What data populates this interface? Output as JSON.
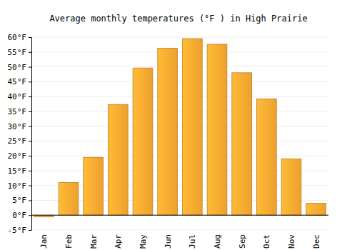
{
  "chart_data": {
    "type": "bar",
    "title": "Average monthly temperatures (°F ) in High Prairie",
    "categories": [
      "Jan",
      "Feb",
      "Mar",
      "Apr",
      "May",
      "Jun",
      "Jul",
      "Aug",
      "Sep",
      "Oct",
      "Nov",
      "Dec"
    ],
    "values": [
      -0.6,
      11,
      19.5,
      37.3,
      49.6,
      56.3,
      59.5,
      57.6,
      48,
      39.2,
      19,
      4
    ],
    "color": "#fba931",
    "ylim": [
      -5,
      60
    ],
    "yticks": [
      {
        "value": -5,
        "label": "-5°F"
      },
      {
        "value": 0,
        "label": "0°F"
      },
      {
        "value": 5,
        "label": "5°F"
      },
      {
        "value": 10,
        "label": "10°F"
      },
      {
        "value": 15,
        "label": "15°F"
      },
      {
        "value": 20,
        "label": "20°F"
      },
      {
        "value": 25,
        "label": "25°F"
      },
      {
        "value": 30,
        "label": "30°F"
      },
      {
        "value": 35,
        "label": "35°F"
      },
      {
        "value": 40,
        "label": "40°F"
      },
      {
        "value": 45,
        "label": "45°F"
      },
      {
        "value": 50,
        "label": "50°F"
      },
      {
        "value": 55,
        "label": "55°F"
      },
      {
        "value": 60,
        "label": "60°F"
      }
    ],
    "grid": true
  }
}
